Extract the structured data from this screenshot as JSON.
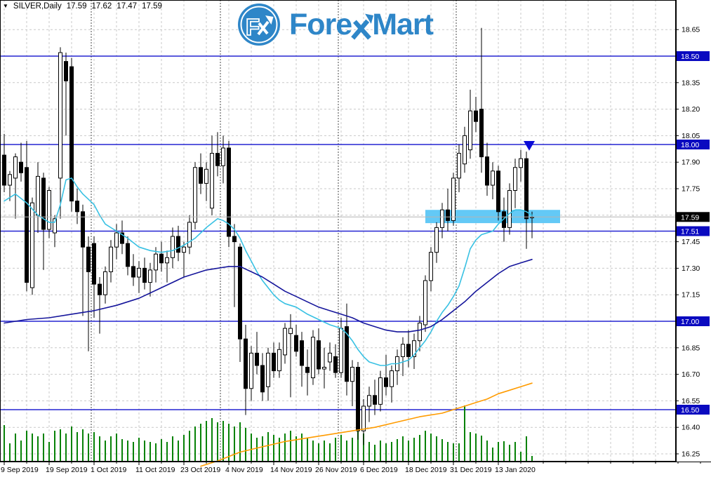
{
  "header": {
    "collapse_arrow": "▼",
    "symbol_period": "SILVER,Daily",
    "open": "17.59",
    "high": "17.62",
    "low": "17.47",
    "close": "17.59"
  },
  "logo": {
    "brand_left": "Fore",
    "brand_right": "Mart",
    "icon_letter": "F"
  },
  "price_axis": {
    "plain_ticks": [
      18.65,
      18.35,
      18.2,
      18.05,
      17.9,
      17.75,
      17.45,
      17.3,
      17.15,
      16.85,
      16.7,
      16.55,
      16.4,
      16.25
    ],
    "level_badges": [
      18.5,
      18.0,
      17.51,
      17.0,
      16.5
    ],
    "current_badge": "17.59"
  },
  "chart_data": {
    "type": "candlestick",
    "symbol": "SILVER",
    "timeframe": "Daily",
    "last_bar_ohlc": {
      "open": 17.59,
      "high": 17.62,
      "low": 17.47,
      "close": 17.59
    },
    "ylim": [
      16.21,
      18.82
    ],
    "price_grid_min": 16.25,
    "price_grid_max": 18.65,
    "price_grid_step": 0.15,
    "horizontal_levels": [
      18.5,
      18.0,
      17.51,
      17.0,
      16.5
    ],
    "current_price": 17.59,
    "volume_unit": "relative",
    "candles": [
      [
        17.94,
        18.06,
        17.73,
        17.77,
        52
      ],
      [
        17.77,
        17.85,
        17.68,
        17.83,
        26
      ],
      [
        17.81,
        17.95,
        17.58,
        17.93,
        40
      ],
      [
        17.9,
        18.01,
        17.79,
        17.84,
        30
      ],
      [
        17.87,
        18.02,
        17.17,
        17.22,
        44
      ],
      [
        17.19,
        17.7,
        17.15,
        17.67,
        40
      ],
      [
        17.6,
        17.9,
        17.5,
        17.82,
        36
      ],
      [
        17.81,
        17.84,
        17.29,
        17.52,
        40
      ],
      [
        17.52,
        17.76,
        17.47,
        17.74,
        28
      ],
      [
        17.5,
        17.6,
        17.42,
        17.58,
        44
      ],
      [
        17.81,
        18.55,
        17.58,
        18.52,
        46
      ],
      [
        18.47,
        18.52,
        18.05,
        18.36,
        40
      ],
      [
        18.44,
        18.49,
        17.62,
        17.68,
        50
      ],
      [
        17.68,
        17.75,
        17.55,
        17.62,
        42
      ],
      [
        17.62,
        17.66,
        17.03,
        17.42,
        46
      ],
      [
        17.42,
        17.48,
        16.83,
        17.28,
        40
      ],
      [
        17.44,
        17.48,
        17.02,
        17.21,
        42
      ],
      [
        17.21,
        17.25,
        16.93,
        17.15,
        36
      ],
      [
        17.15,
        17.31,
        17.1,
        17.28,
        30
      ],
      [
        17.28,
        17.46,
        17.22,
        17.42,
        36
      ],
      [
        17.42,
        17.55,
        17.35,
        17.5,
        40
      ],
      [
        17.5,
        17.57,
        17.38,
        17.44,
        32
      ],
      [
        17.44,
        17.48,
        17.26,
        17.31,
        30
      ],
      [
        17.31,
        17.38,
        17.2,
        17.25,
        28
      ],
      [
        17.25,
        17.34,
        17.16,
        17.3,
        34
      ],
      [
        17.3,
        17.36,
        17.18,
        17.22,
        30
      ],
      [
        17.22,
        17.33,
        17.14,
        17.29,
        28
      ],
      [
        17.29,
        17.42,
        17.22,
        17.38,
        26
      ],
      [
        17.38,
        17.45,
        17.28,
        17.33,
        32
      ],
      [
        17.33,
        17.4,
        17.22,
        17.36,
        28
      ],
      [
        17.36,
        17.53,
        17.3,
        17.48,
        36
      ],
      [
        17.48,
        17.54,
        17.34,
        17.39,
        30
      ],
      [
        17.39,
        17.45,
        17.25,
        17.42,
        38
      ],
      [
        17.42,
        17.6,
        17.38,
        17.56,
        44
      ],
      [
        17.56,
        17.9,
        17.52,
        17.87,
        50
      ],
      [
        17.87,
        17.95,
        17.72,
        17.78,
        54
      ],
      [
        17.78,
        17.9,
        17.68,
        17.86,
        58
      ],
      [
        17.64,
        18.05,
        17.6,
        17.95,
        62
      ],
      [
        17.95,
        18.07,
        17.82,
        17.88,
        56
      ],
      [
        17.88,
        18.05,
        17.78,
        17.98,
        58
      ],
      [
        17.98,
        18.02,
        17.42,
        17.48,
        54
      ],
      [
        17.48,
        17.55,
        17.08,
        17.45,
        50
      ],
      [
        17.42,
        17.44,
        16.77,
        16.9,
        56
      ],
      [
        16.9,
        16.98,
        16.47,
        16.62,
        48
      ],
      [
        16.62,
        16.86,
        16.55,
        16.82,
        40
      ],
      [
        16.82,
        16.94,
        16.7,
        16.75,
        34
      ],
      [
        16.75,
        16.82,
        16.55,
        16.6,
        36
      ],
      [
        16.63,
        16.85,
        16.55,
        16.82,
        42
      ],
      [
        16.82,
        16.88,
        16.68,
        16.72,
        38
      ],
      [
        16.72,
        16.88,
        16.68,
        16.84,
        34
      ],
      [
        16.81,
        16.99,
        16.76,
        16.96,
        40
      ],
      [
        16.93,
        17.04,
        16.57,
        16.96,
        44
      ],
      [
        16.92,
        16.98,
        16.8,
        16.83,
        36
      ],
      [
        16.89,
        16.94,
        16.63,
        16.75,
        40
      ],
      [
        16.74,
        16.84,
        16.58,
        16.71,
        34
      ],
      [
        16.68,
        16.95,
        16.64,
        16.91,
        30
      ],
      [
        16.89,
        16.96,
        16.7,
        16.73,
        26
      ],
      [
        16.73,
        16.85,
        16.62,
        16.74,
        30
      ],
      [
        16.77,
        16.88,
        16.72,
        16.82,
        26
      ],
      [
        16.8,
        16.87,
        16.68,
        16.71,
        34
      ],
      [
        16.71,
        17.02,
        16.68,
        16.96,
        38
      ],
      [
        16.97,
        17.1,
        16.58,
        16.66,
        30
      ],
      [
        16.66,
        16.78,
        16.52,
        16.74,
        34
      ],
      [
        16.74,
        16.77,
        16.33,
        16.38,
        46
      ],
      [
        16.38,
        16.56,
        16.3,
        16.52,
        40
      ],
      [
        16.52,
        16.63,
        16.43,
        16.58,
        28
      ],
      [
        16.58,
        16.67,
        16.47,
        16.53,
        24
      ],
      [
        16.53,
        16.72,
        16.49,
        16.68,
        30
      ],
      [
        16.68,
        16.81,
        16.58,
        16.63,
        26
      ],
      [
        16.63,
        16.75,
        16.54,
        16.72,
        28
      ],
      [
        16.72,
        16.84,
        16.64,
        16.8,
        32
      ],
      [
        16.8,
        16.91,
        16.69,
        16.87,
        36
      ],
      [
        16.87,
        16.95,
        16.74,
        16.8,
        30
      ],
      [
        16.8,
        16.93,
        16.73,
        16.89,
        34
      ],
      [
        16.89,
        17.03,
        16.83,
        16.99,
        38
      ],
      [
        16.98,
        17.26,
        16.94,
        17.23,
        44
      ],
      [
        17.23,
        17.42,
        17.17,
        17.39,
        40
      ],
      [
        17.39,
        17.56,
        17.33,
        17.53,
        36
      ],
      [
        17.53,
        17.67,
        17.47,
        17.63,
        32
      ],
      [
        17.63,
        17.75,
        17.51,
        17.57,
        28
      ],
      [
        17.57,
        17.84,
        17.54,
        17.81,
        26
      ],
      [
        17.81,
        18.0,
        17.73,
        17.95,
        26
      ],
      [
        17.89,
        18.1,
        17.84,
        18.05,
        80
      ],
      [
        17.97,
        18.31,
        17.92,
        18.19,
        42
      ],
      [
        18.19,
        18.27,
        18.07,
        18.13,
        40
      ],
      [
        18.2,
        18.66,
        17.84,
        17.93,
        37
      ],
      [
        17.93,
        18.01,
        17.71,
        17.77,
        30
      ],
      [
        17.77,
        17.9,
        17.69,
        17.85,
        20
      ],
      [
        17.85,
        17.88,
        17.57,
        17.62,
        28
      ],
      [
        17.62,
        17.7,
        17.45,
        17.53,
        29
      ],
      [
        17.53,
        17.78,
        17.49,
        17.74,
        24
      ],
      [
        17.74,
        17.92,
        17.64,
        17.87,
        28
      ],
      [
        17.87,
        17.97,
        17.79,
        17.92,
        14
      ],
      [
        17.92,
        17.96,
        17.41,
        17.58,
        36
      ],
      [
        17.59,
        17.62,
        17.47,
        17.59,
        8
      ]
    ],
    "moving_averages": [
      {
        "name": "fast-cyan",
        "color": "#38c1e3",
        "points": [
          [
            0,
            17.68
          ],
          [
            2,
            17.72
          ],
          [
            4,
            17.67
          ],
          [
            6,
            17.6
          ],
          [
            8,
            17.56
          ],
          [
            9,
            17.56
          ],
          [
            10,
            17.66
          ],
          [
            11,
            17.8
          ],
          [
            12,
            17.81
          ],
          [
            13,
            17.76
          ],
          [
            14,
            17.72
          ],
          [
            15,
            17.69
          ],
          [
            16,
            17.66
          ],
          [
            17,
            17.6
          ],
          [
            18,
            17.55
          ],
          [
            20,
            17.51
          ],
          [
            22,
            17.47
          ],
          [
            24,
            17.42
          ],
          [
            26,
            17.4
          ],
          [
            28,
            17.39
          ],
          [
            30,
            17.4
          ],
          [
            32,
            17.43
          ],
          [
            34,
            17.47
          ],
          [
            36,
            17.53
          ],
          [
            38,
            17.58
          ],
          [
            39,
            17.57
          ],
          [
            40,
            17.55
          ],
          [
            41,
            17.52
          ],
          [
            42,
            17.47
          ],
          [
            43,
            17.4
          ],
          [
            44,
            17.34
          ],
          [
            45,
            17.28
          ],
          [
            46,
            17.23
          ],
          [
            47,
            17.19
          ],
          [
            48,
            17.15
          ],
          [
            49,
            17.12
          ],
          [
            50,
            17.1
          ],
          [
            52,
            17.08
          ],
          [
            54,
            17.04
          ],
          [
            56,
            17.01
          ],
          [
            58,
            16.98
          ],
          [
            60,
            16.96
          ],
          [
            61,
            16.93
          ],
          [
            62,
            16.89
          ],
          [
            63,
            16.84
          ],
          [
            64,
            16.8
          ],
          [
            65,
            16.77
          ],
          [
            66,
            16.76
          ],
          [
            67,
            16.75
          ],
          [
            68,
            16.75
          ],
          [
            69,
            16.76
          ],
          [
            70,
            16.76
          ],
          [
            71,
            16.77
          ],
          [
            72,
            16.78
          ],
          [
            73,
            16.81
          ],
          [
            74,
            16.85
          ],
          [
            75,
            16.89
          ],
          [
            76,
            16.94
          ],
          [
            77,
            17.0
          ],
          [
            78,
            17.05
          ],
          [
            79,
            17.09
          ],
          [
            80,
            17.14
          ],
          [
            81,
            17.2
          ],
          [
            82,
            17.3
          ],
          [
            83,
            17.41
          ],
          [
            84,
            17.46
          ],
          [
            85,
            17.49
          ],
          [
            86,
            17.5
          ],
          [
            87,
            17.51
          ],
          [
            88,
            17.55
          ],
          [
            89,
            17.58
          ],
          [
            90,
            17.61
          ],
          [
            91,
            17.63
          ],
          [
            92,
            17.63
          ],
          [
            93,
            17.62
          ],
          [
            94,
            17.6
          ]
        ]
      },
      {
        "name": "slow-navy",
        "color": "#15159b",
        "points": [
          [
            0,
            16.99
          ],
          [
            4,
            17.01
          ],
          [
            8,
            17.02
          ],
          [
            12,
            17.04
          ],
          [
            16,
            17.06
          ],
          [
            20,
            17.09
          ],
          [
            24,
            17.13
          ],
          [
            28,
            17.19
          ],
          [
            32,
            17.25
          ],
          [
            36,
            17.29
          ],
          [
            40,
            17.31
          ],
          [
            42,
            17.31
          ],
          [
            44,
            17.28
          ],
          [
            46,
            17.25
          ],
          [
            48,
            17.21
          ],
          [
            50,
            17.17
          ],
          [
            52,
            17.14
          ],
          [
            54,
            17.11
          ],
          [
            56,
            17.08
          ],
          [
            58,
            17.06
          ],
          [
            60,
            17.04
          ],
          [
            62,
            17.02
          ],
          [
            64,
            16.99
          ],
          [
            66,
            16.97
          ],
          [
            68,
            16.95
          ],
          [
            70,
            16.94
          ],
          [
            72,
            16.94
          ],
          [
            74,
            16.95
          ],
          [
            76,
            16.97
          ],
          [
            78,
            17.01
          ],
          [
            80,
            17.06
          ],
          [
            82,
            17.11
          ],
          [
            84,
            17.17
          ],
          [
            86,
            17.22
          ],
          [
            88,
            17.27
          ],
          [
            90,
            17.31
          ],
          [
            92,
            17.33
          ],
          [
            94,
            17.35
          ]
        ]
      },
      {
        "name": "long-orange",
        "color": "#ff9b00",
        "points": [
          [
            35,
            16.18
          ],
          [
            38,
            16.21
          ],
          [
            42,
            16.26
          ],
          [
            46,
            16.29
          ],
          [
            50,
            16.32
          ],
          [
            54,
            16.34
          ],
          [
            58,
            16.36
          ],
          [
            62,
            16.38
          ],
          [
            66,
            16.4
          ],
          [
            70,
            16.43
          ],
          [
            74,
            16.46
          ],
          [
            78,
            16.48
          ],
          [
            80,
            16.5
          ],
          [
            82,
            16.52
          ],
          [
            84,
            16.54
          ],
          [
            86,
            16.56
          ],
          [
            88,
            16.59
          ],
          [
            90,
            16.61
          ],
          [
            92,
            16.63
          ],
          [
            94,
            16.65
          ]
        ]
      }
    ],
    "annotations": {
      "highlight_rect": {
        "bar_start": 75,
        "bar_end": 99,
        "price_top": 17.63,
        "price_bottom": 17.555
      },
      "sell_arrow": {
        "bar": 93.5,
        "price_top": 18.02,
        "price_tip": 17.965,
        "direction": "down"
      }
    },
    "month_separators_bars": [
      16,
      39,
      60,
      81
    ],
    "date_labels": [
      {
        "label": "9 Sep 2019",
        "bar": 0
      },
      {
        "label": "19 Sep 2019",
        "bar": 8
      },
      {
        "label": "1 Oct 2019",
        "bar": 16
      },
      {
        "label": "11 Oct 2019",
        "bar": 24
      },
      {
        "label": "23 Oct 2019",
        "bar": 32
      },
      {
        "label": "4 Nov 2019",
        "bar": 40
      },
      {
        "label": "14 Nov 2019",
        "bar": 48
      },
      {
        "label": "26 Nov 2019",
        "bar": 56
      },
      {
        "label": "6 Dec 2019",
        "bar": 64
      },
      {
        "label": "18 Dec 2019",
        "bar": 72
      },
      {
        "label": "31 Dec 2019",
        "bar": 80
      },
      {
        "label": "13 Jan 2020",
        "bar": 88
      }
    ],
    "colors": {
      "bull": "#ffffff",
      "bear": "#000000",
      "wick": "#000000",
      "volume": "#078207",
      "grid": "#c9c9c9",
      "separator": "#4a4a4a",
      "level_line": "#2525d2",
      "badge_blue": "#0a0ac0",
      "badge_black": "#000000",
      "bid_line": "#b4b4b4",
      "rect": "#63c9f6",
      "arrow": "#0b0bd7",
      "brand": "#2e86c8",
      "text": "#000000"
    }
  }
}
